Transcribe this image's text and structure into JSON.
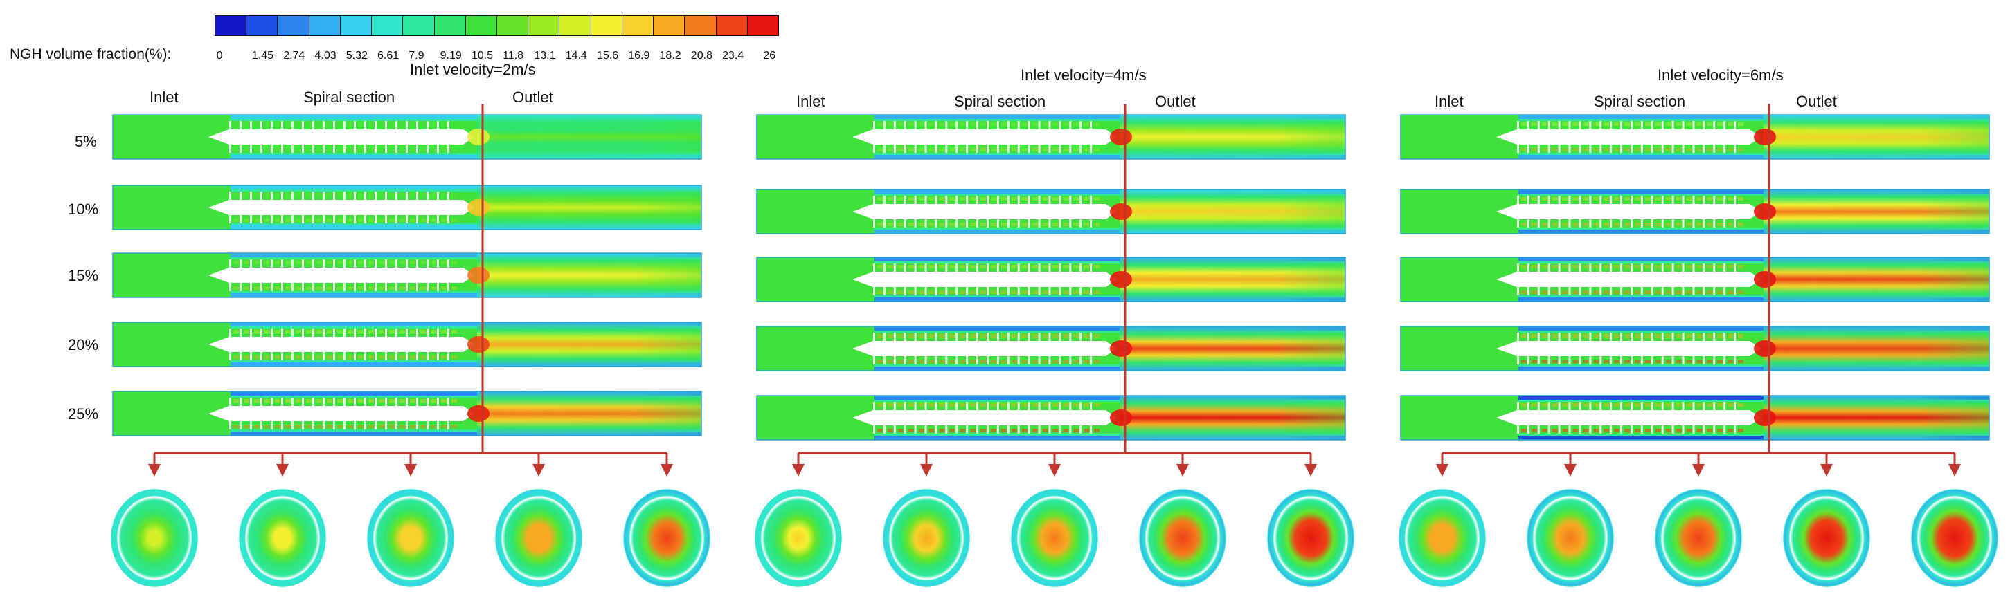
{
  "legend": {
    "label": "NGH volume fraction(%):",
    "ticks": [
      "0",
      "1.45",
      "2.74",
      "4.03",
      "5.32",
      "6.61",
      "7.9",
      "9.19",
      "10.5",
      "11.8",
      "13.1",
      "14.4",
      "15.6",
      "16.9",
      "18.2",
      "20.8",
      "23.4",
      "26"
    ],
    "colors": [
      "#1515c8",
      "#1d4fe6",
      "#2d86ee",
      "#33aef2",
      "#35d0ee",
      "#30e6cc",
      "#2ee89e",
      "#30e46e",
      "#3ee23a",
      "#66e42a",
      "#9aea22",
      "#d2f025",
      "#f4f030",
      "#f6d22a",
      "#f6aa22",
      "#f47a1c",
      "#ee4216",
      "#e6150f"
    ]
  },
  "row_labels": [
    "5%",
    "10%",
    "15%",
    "20%",
    "25%"
  ],
  "panels": [
    {
      "title": "Inlet velocity=2m/s",
      "sections": {
        "inlet": "Inlet",
        "spiral": "Spiral section",
        "outlet": "Outlet"
      },
      "intensity": [
        0.18,
        0.33,
        0.48,
        0.63,
        0.78
      ],
      "section_colors": [
        "#dff03a",
        "#f6c42a",
        "#f2781e",
        "#ec4416",
        "#e6200f"
      ]
    },
    {
      "title": "Inlet velocity=4m/s",
      "sections": {
        "inlet": "Inlet",
        "spiral": "Spiral section",
        "outlet": "Outlet"
      },
      "intensity": [
        0.42,
        0.58,
        0.72,
        0.85,
        0.95
      ],
      "section_colors": [
        "#e6200f",
        "#e6200f",
        "#e6180f",
        "#e6150f",
        "#e6150f"
      ]
    },
    {
      "title": "Inlet velocity=6m/s",
      "sections": {
        "inlet": "Inlet",
        "spiral": "Spiral section",
        "outlet": "Outlet"
      },
      "intensity": [
        0.62,
        0.75,
        0.86,
        0.94,
        1.0
      ],
      "section_colors": [
        "#e6150f",
        "#e6150f",
        "#e6150f",
        "#e6150f",
        "#e6150f"
      ]
    }
  ]
}
